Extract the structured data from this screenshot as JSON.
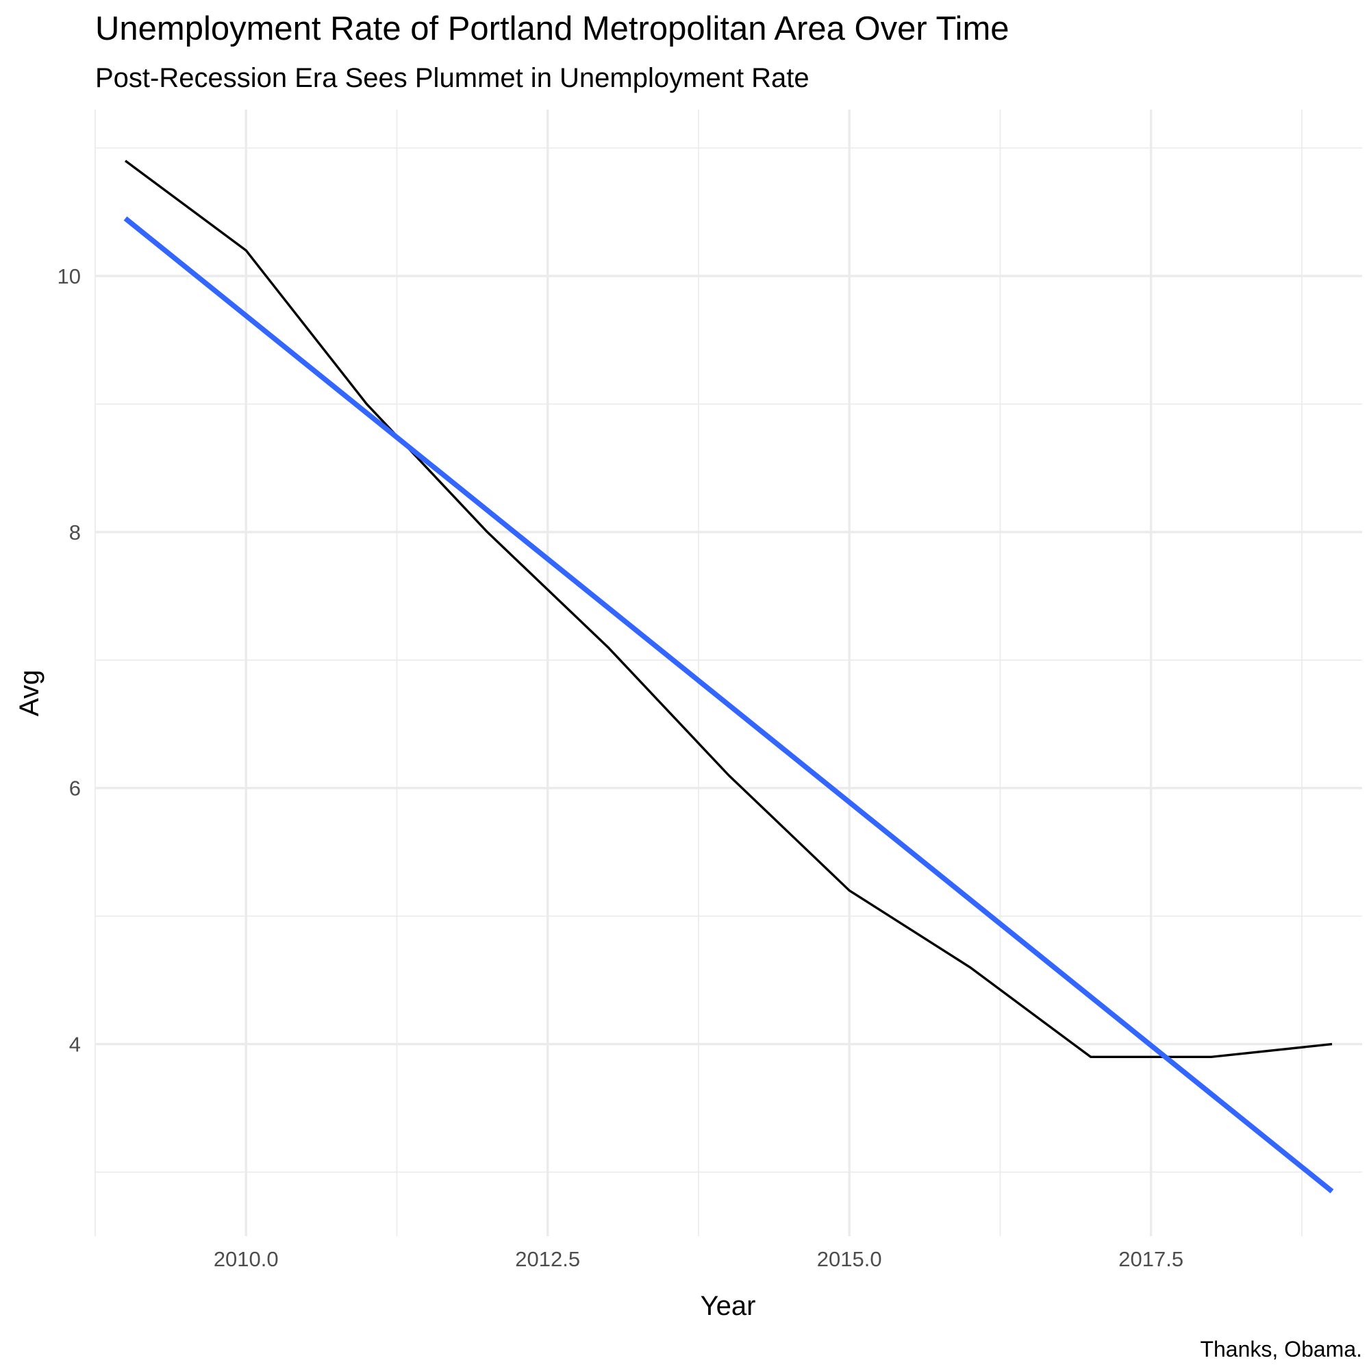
{
  "chart_data": {
    "type": "line",
    "title": "Unemployment Rate of Portland Metropolitan Area Over Time",
    "subtitle": "Post-Recession Era Sees Plummet in Unemployment Rate",
    "xlabel": "Year",
    "ylabel": "Avg",
    "caption": "Thanks, Obama.",
    "xlim": [
      2008.75,
      2019.25
    ],
    "ylim": [
      2.5,
      11.3
    ],
    "x_ticks": [
      2010.0,
      2012.5,
      2015.0,
      2017.5
    ],
    "x_tick_labels": [
      "2010.0",
      "2012.5",
      "2015.0",
      "2017.5"
    ],
    "x_minor": [
      2008.75,
      2011.25,
      2013.75,
      2016.25,
      2018.75
    ],
    "y_ticks": [
      4,
      6,
      8,
      10
    ],
    "y_tick_labels": [
      "4",
      "6",
      "8",
      "10"
    ],
    "y_minor": [
      3,
      5,
      7,
      9,
      11
    ],
    "grid": true,
    "legend": "none",
    "series": [
      {
        "kind": "line",
        "color": "#000000",
        "x": [
          2009,
          2010,
          2011,
          2012,
          2013,
          2014,
          2015,
          2016,
          2017,
          2018,
          2019
        ],
        "y": [
          10.9,
          10.2,
          9.0,
          8.0,
          7.1,
          6.1,
          5.2,
          4.6,
          3.9,
          3.9,
          4.0
        ]
      },
      {
        "kind": "trend",
        "color": "#3366ff",
        "x": [
          2009,
          2019
        ],
        "y": [
          10.45,
          2.85
        ]
      }
    ]
  }
}
